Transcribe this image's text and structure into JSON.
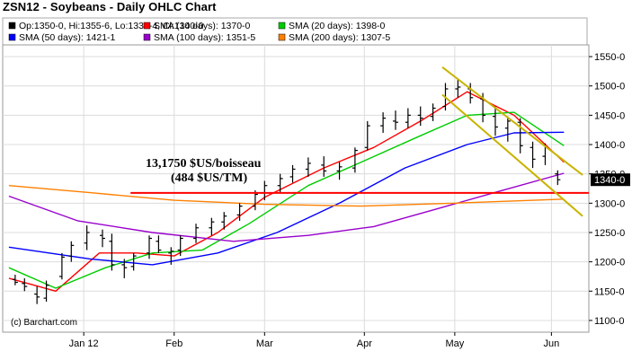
{
  "header": {
    "title": "ZSN12 - Soybeans - Daily OHLC Chart"
  },
  "legend": [
    {
      "text": "Op:1350-0, Hi:1355-6, Lo:1331-4, Cl:1340-0",
      "color": "#000000"
    },
    {
      "text": "SMA (10 days): 1370-0",
      "color": "#ff0000"
    },
    {
      "text": "SMA (20 days): 1398-0",
      "color": "#00cc00"
    },
    {
      "text": "SMA (50 days): 1421-1",
      "color": "#0000ff"
    },
    {
      "text": "SMA (100 days): 1351-5",
      "color": "#9900cc"
    },
    {
      "text": "SMA (200 days): 1307-5",
      "color": "#ff8000"
    }
  ],
  "annotations": {
    "line1": "13,1750 $US/boisseau",
    "line2": "(484 $US/TM)",
    "credit": "(c) Barchart.com"
  },
  "chart_data": {
    "type": "ohlc",
    "title": "ZSN12 - Soybeans - Daily OHLC Chart",
    "ylim": [
      1080,
      1570
    ],
    "ytick_values": [
      1100,
      1150,
      1200,
      1250,
      1300,
      1350,
      1400,
      1450,
      1500,
      1550
    ],
    "ytick_labels": [
      "1100-0",
      "1150-0",
      "1200-0",
      "1250-0",
      "1300-0",
      "1350-0",
      "1400-0",
      "1450-0",
      "1500-0",
      "1550-0"
    ],
    "xlim": [
      "2011-12-08",
      "2012-06-13"
    ],
    "xticks": [
      {
        "label": "Jan 12",
        "date": "2012-01-03"
      },
      {
        "label": "Feb",
        "date": "2012-02-01"
      },
      {
        "label": "Mar",
        "date": "2012-03-01"
      },
      {
        "label": "Apr",
        "date": "2012-04-02"
      },
      {
        "label": "May",
        "date": "2012-05-01"
      },
      {
        "label": "Jun",
        "date": "2012-06-01"
      }
    ],
    "ohlc_approx": [
      {
        "date": "2011-12-12",
        "o": 1170,
        "h": 1178,
        "l": 1160,
        "c": 1165
      },
      {
        "date": "2011-12-15",
        "o": 1163,
        "h": 1172,
        "l": 1150,
        "c": 1158
      },
      {
        "date": "2011-12-19",
        "o": 1145,
        "h": 1158,
        "l": 1128,
        "c": 1140
      },
      {
        "date": "2011-12-22",
        "o": 1138,
        "h": 1168,
        "l": 1132,
        "c": 1160
      },
      {
        "date": "2011-12-27",
        "o": 1175,
        "h": 1215,
        "l": 1170,
        "c": 1208
      },
      {
        "date": "2011-12-30",
        "o": 1210,
        "h": 1235,
        "l": 1200,
        "c": 1228
      },
      {
        "date": "2012-01-04",
        "o": 1232,
        "h": 1262,
        "l": 1220,
        "c": 1250
      },
      {
        "date": "2012-01-09",
        "o": 1245,
        "h": 1255,
        "l": 1225,
        "c": 1240
      },
      {
        "date": "2012-01-12",
        "o": 1235,
        "h": 1248,
        "l": 1185,
        "c": 1195
      },
      {
        "date": "2012-01-16",
        "o": 1195,
        "h": 1205,
        "l": 1172,
        "c": 1190
      },
      {
        "date": "2012-01-19",
        "o": 1192,
        "h": 1215,
        "l": 1185,
        "c": 1210
      },
      {
        "date": "2012-01-24",
        "o": 1215,
        "h": 1245,
        "l": 1205,
        "c": 1240
      },
      {
        "date": "2012-01-27",
        "o": 1235,
        "h": 1245,
        "l": 1215,
        "c": 1220
      },
      {
        "date": "2012-01-31",
        "o": 1215,
        "h": 1225,
        "l": 1195,
        "c": 1218
      },
      {
        "date": "2012-02-03",
        "o": 1220,
        "h": 1245,
        "l": 1210,
        "c": 1240
      },
      {
        "date": "2012-02-08",
        "o": 1240,
        "h": 1265,
        "l": 1232,
        "c": 1258
      },
      {
        "date": "2012-02-13",
        "o": 1258,
        "h": 1275,
        "l": 1245,
        "c": 1268
      },
      {
        "date": "2012-02-17",
        "o": 1268,
        "h": 1285,
        "l": 1255,
        "c": 1278
      },
      {
        "date": "2012-02-22",
        "o": 1280,
        "h": 1300,
        "l": 1270,
        "c": 1295
      },
      {
        "date": "2012-02-27",
        "o": 1295,
        "h": 1322,
        "l": 1288,
        "c": 1315
      },
      {
        "date": "2012-03-01",
        "o": 1318,
        "h": 1338,
        "l": 1305,
        "c": 1330
      },
      {
        "date": "2012-03-06",
        "o": 1330,
        "h": 1350,
        "l": 1318,
        "c": 1342
      },
      {
        "date": "2012-03-10",
        "o": 1345,
        "h": 1365,
        "l": 1335,
        "c": 1358
      },
      {
        "date": "2012-03-15",
        "o": 1358,
        "h": 1378,
        "l": 1345,
        "c": 1368
      },
      {
        "date": "2012-03-20",
        "o": 1365,
        "h": 1380,
        "l": 1345,
        "c": 1355
      },
      {
        "date": "2012-03-25",
        "o": 1355,
        "h": 1370,
        "l": 1340,
        "c": 1362
      },
      {
        "date": "2012-03-30",
        "o": 1360,
        "h": 1395,
        "l": 1352,
        "c": 1390
      },
      {
        "date": "2012-04-03",
        "o": 1395,
        "h": 1440,
        "l": 1390,
        "c": 1432
      },
      {
        "date": "2012-04-08",
        "o": 1432,
        "h": 1455,
        "l": 1420,
        "c": 1445
      },
      {
        "date": "2012-04-12",
        "o": 1440,
        "h": 1458,
        "l": 1425,
        "c": 1438
      },
      {
        "date": "2012-04-16",
        "o": 1438,
        "h": 1462,
        "l": 1428,
        "c": 1450
      },
      {
        "date": "2012-04-20",
        "o": 1450,
        "h": 1465,
        "l": 1432,
        "c": 1445
      },
      {
        "date": "2012-04-24",
        "o": 1448,
        "h": 1470,
        "l": 1440,
        "c": 1462
      },
      {
        "date": "2012-04-28",
        "o": 1465,
        "h": 1505,
        "l": 1458,
        "c": 1495
      },
      {
        "date": "2012-05-02",
        "o": 1495,
        "h": 1512,
        "l": 1480,
        "c": 1498
      },
      {
        "date": "2012-05-06",
        "o": 1495,
        "h": 1505,
        "l": 1470,
        "c": 1480
      },
      {
        "date": "2012-05-10",
        "o": 1478,
        "h": 1488,
        "l": 1438,
        "c": 1450
      },
      {
        "date": "2012-05-14",
        "o": 1448,
        "h": 1465,
        "l": 1415,
        "c": 1430
      },
      {
        "date": "2012-05-18",
        "o": 1428,
        "h": 1448,
        "l": 1405,
        "c": 1440
      },
      {
        "date": "2012-05-22",
        "o": 1438,
        "h": 1445,
        "l": 1385,
        "c": 1398
      },
      {
        "date": "2012-05-26",
        "o": 1395,
        "h": 1405,
        "l": 1360,
        "c": 1375
      },
      {
        "date": "2012-05-30",
        "o": 1380,
        "h": 1402,
        "l": 1365,
        "c": 1395
      },
      {
        "date": "2012-06-03",
        "o": 1350,
        "h": 1356,
        "l": 1331,
        "c": 1340
      }
    ],
    "series": [
      {
        "name": "SMA (10 days)",
        "color": "#ff0000",
        "points": [
          [
            "2011-12-10",
            1172
          ],
          [
            "2011-12-25",
            1150
          ],
          [
            "2012-01-08",
            1215
          ],
          [
            "2012-01-20",
            1215
          ],
          [
            "2012-02-01",
            1210
          ],
          [
            "2012-02-15",
            1250
          ],
          [
            "2012-03-01",
            1310
          ],
          [
            "2012-03-20",
            1360
          ],
          [
            "2012-04-05",
            1395
          ],
          [
            "2012-04-20",
            1440
          ],
          [
            "2012-05-05",
            1490
          ],
          [
            "2012-05-20",
            1450
          ],
          [
            "2012-06-05",
            1370
          ]
        ]
      },
      {
        "name": "SMA (20 days)",
        "color": "#00cc00",
        "points": [
          [
            "2011-12-10",
            1190
          ],
          [
            "2011-12-25",
            1155
          ],
          [
            "2012-01-10",
            1190
          ],
          [
            "2012-01-25",
            1215
          ],
          [
            "2012-02-10",
            1220
          ],
          [
            "2012-02-25",
            1265
          ],
          [
            "2012-03-15",
            1330
          ],
          [
            "2012-04-01",
            1370
          ],
          [
            "2012-04-20",
            1415
          ],
          [
            "2012-05-05",
            1450
          ],
          [
            "2012-05-20",
            1455
          ],
          [
            "2012-06-05",
            1398
          ]
        ]
      },
      {
        "name": "SMA (50 days)",
        "color": "#0000ff",
        "points": [
          [
            "2011-12-10",
            1225
          ],
          [
            "2012-01-05",
            1205
          ],
          [
            "2012-01-25",
            1195
          ],
          [
            "2012-02-15",
            1215
          ],
          [
            "2012-03-05",
            1250
          ],
          [
            "2012-03-25",
            1300
          ],
          [
            "2012-04-15",
            1360
          ],
          [
            "2012-05-05",
            1400
          ],
          [
            "2012-05-20",
            1420
          ],
          [
            "2012-06-05",
            1421
          ]
        ]
      },
      {
        "name": "SMA (100 days)",
        "color": "#9900cc",
        "points": [
          [
            "2011-12-10",
            1312
          ],
          [
            "2012-01-01",
            1270
          ],
          [
            "2012-01-25",
            1250
          ],
          [
            "2012-02-20",
            1235
          ],
          [
            "2012-03-15",
            1245
          ],
          [
            "2012-04-05",
            1260
          ],
          [
            "2012-04-25",
            1290
          ],
          [
            "2012-05-15",
            1320
          ],
          [
            "2012-06-05",
            1351
          ]
        ]
      },
      {
        "name": "SMA (200 days)",
        "color": "#ff8000",
        "points": [
          [
            "2011-12-10",
            1330
          ],
          [
            "2012-01-05",
            1318
          ],
          [
            "2012-02-01",
            1305
          ],
          [
            "2012-03-01",
            1298
          ],
          [
            "2012-04-01",
            1295
          ],
          [
            "2012-05-01",
            1300
          ],
          [
            "2012-06-05",
            1307
          ]
        ]
      }
    ],
    "horizontal_lines": [
      {
        "value": 1317.5,
        "color": "#ff0000",
        "from": "2012-01-18",
        "to": "2012-06-13"
      }
    ],
    "trendlines": [
      {
        "color": "#c8b400",
        "p1": [
          "2012-04-27",
          1532
        ],
        "p2": [
          "2012-06-11",
          1348
        ]
      },
      {
        "color": "#c8b400",
        "p1": [
          "2012-04-27",
          1485
        ],
        "p2": [
          "2012-06-11",
          1278
        ]
      }
    ],
    "last_price": {
      "value": 1340,
      "label": "1340-0"
    }
  }
}
